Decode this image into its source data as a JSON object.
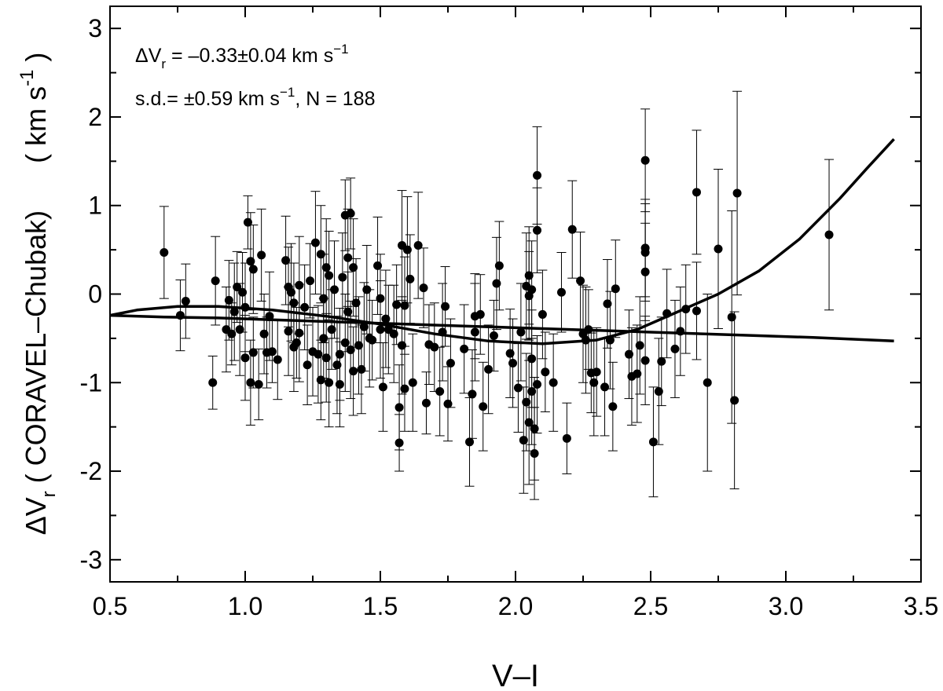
{
  "chart_data": {
    "type": "scatter",
    "title": "",
    "xlabel": "V–I",
    "ylabel_main": "ΔV",
    "ylabel_sub": "r",
    "ylabel_paren": "( CORAVEL–Chubak)",
    "ylabel_units": "( km s",
    "ylabel_units_sup": "-1",
    "ylabel_units_close": ")",
    "xlim": [
      0.5,
      3.5
    ],
    "ylim": [
      -3.25,
      3.25
    ],
    "xticks": [
      0.5,
      1.0,
      1.5,
      2.0,
      2.5,
      3.0,
      3.5
    ],
    "xtick_labels": [
      "0.5",
      "1.0",
      "1.5",
      "2.0",
      "2.5",
      "3.0",
      "3.5"
    ],
    "yticks": [
      -3,
      -2,
      -1,
      0,
      1,
      2,
      3
    ],
    "ytick_labels": [
      "-3",
      "-2",
      "-1",
      "0",
      "1",
      "2",
      "3"
    ],
    "grid": false,
    "annotations": {
      "line1_a": "ΔV",
      "line1_sub": "r",
      "line1_b": " = –0.33±0.04 km s",
      "line1_sup": "−1",
      "line2_a": "s.d.= ±0.59 km s",
      "line2_sup": "−1",
      "line2_b": ",  N = 188"
    },
    "points": [
      {
        "x": 0.7,
        "y": 0.47,
        "e": 0.52
      },
      {
        "x": 0.76,
        "y": -0.24,
        "e": 0.4
      },
      {
        "x": 0.78,
        "y": -0.08,
        "e": 0.42
      },
      {
        "x": 0.88,
        "y": -1.0,
        "e": 0.3
      },
      {
        "x": 0.89,
        "y": 0.15,
        "e": 0.5
      },
      {
        "x": 0.93,
        "y": -0.4,
        "e": 0.48
      },
      {
        "x": 0.94,
        "y": -0.07,
        "e": 0.45
      },
      {
        "x": 0.95,
        "y": -0.45,
        "e": 0.35
      },
      {
        "x": 0.96,
        "y": -0.2,
        "e": 0.55
      },
      {
        "x": 0.97,
        "y": 0.08,
        "e": 0.4
      },
      {
        "x": 0.98,
        "y": -0.4,
        "e": 0.52
      },
      {
        "x": 0.99,
        "y": 0.02,
        "e": 0.45
      },
      {
        "x": 1.0,
        "y": -0.15,
        "e": 0.5
      },
      {
        "x": 1.0,
        "y": -0.72,
        "e": 0.48
      },
      {
        "x": 1.01,
        "y": 0.81,
        "e": 0.3
      },
      {
        "x": 1.02,
        "y": -1.0,
        "e": 0.48
      },
      {
        "x": 1.02,
        "y": 0.37,
        "e": 0.55
      },
      {
        "x": 1.03,
        "y": 0.28,
        "e": 0.5
      },
      {
        "x": 1.03,
        "y": -0.66,
        "e": 0.4
      },
      {
        "x": 1.05,
        "y": -1.02,
        "e": 0.4
      },
      {
        "x": 1.06,
        "y": 0.44,
        "e": 0.52
      },
      {
        "x": 1.07,
        "y": -0.45,
        "e": 0.45
      },
      {
        "x": 1.08,
        "y": -0.66,
        "e": 0.4
      },
      {
        "x": 1.09,
        "y": -0.25,
        "e": 0.5
      },
      {
        "x": 1.1,
        "y": -0.65,
        "e": 0.35
      },
      {
        "x": 1.12,
        "y": -0.74,
        "e": 0.45
      },
      {
        "x": 1.15,
        "y": 0.38,
        "e": 0.5
      },
      {
        "x": 1.16,
        "y": 0.08,
        "e": 0.45
      },
      {
        "x": 1.16,
        "y": -0.42,
        "e": 0.5
      },
      {
        "x": 1.17,
        "y": 0.02,
        "e": 0.55
      },
      {
        "x": 1.18,
        "y": -0.1,
        "e": 0.45
      },
      {
        "x": 1.18,
        "y": -0.6,
        "e": 0.5
      },
      {
        "x": 1.19,
        "y": -0.55,
        "e": 0.4
      },
      {
        "x": 1.2,
        "y": 0.1,
        "e": 0.55
      },
      {
        "x": 1.2,
        "y": -0.44,
        "e": 0.55
      },
      {
        "x": 1.22,
        "y": -0.15,
        "e": 0.48
      },
      {
        "x": 1.23,
        "y": -0.8,
        "e": 0.45
      },
      {
        "x": 1.24,
        "y": 0.15,
        "e": 0.42
      },
      {
        "x": 1.25,
        "y": -0.65,
        "e": 0.5
      },
      {
        "x": 1.26,
        "y": 0.58,
        "e": 0.58
      },
      {
        "x": 1.27,
        "y": -0.68,
        "e": 0.55
      },
      {
        "x": 1.28,
        "y": 0.45,
        "e": 0.55
      },
      {
        "x": 1.28,
        "y": -0.97,
        "e": 0.45
      },
      {
        "x": 1.29,
        "y": -0.05,
        "e": 0.5
      },
      {
        "x": 1.29,
        "y": -0.5,
        "e": 0.45
      },
      {
        "x": 1.3,
        "y": 0.3,
        "e": 0.55
      },
      {
        "x": 1.3,
        "y": -0.72,
        "e": 0.5
      },
      {
        "x": 1.31,
        "y": 0.21,
        "e": 0.5
      },
      {
        "x": 1.31,
        "y": -1.0,
        "e": 0.5
      },
      {
        "x": 1.32,
        "y": -0.4,
        "e": 0.45
      },
      {
        "x": 1.33,
        "y": 0.05,
        "e": 0.55
      },
      {
        "x": 1.34,
        "y": -0.8,
        "e": 0.55
      },
      {
        "x": 1.35,
        "y": -1.02,
        "e": 0.48
      },
      {
        "x": 1.35,
        "y": -0.68,
        "e": 0.52
      },
      {
        "x": 1.36,
        "y": 0.19,
        "e": 0.5
      },
      {
        "x": 1.37,
        "y": 0.89,
        "e": 0.4
      },
      {
        "x": 1.37,
        "y": -0.55,
        "e": 0.55
      },
      {
        "x": 1.38,
        "y": 0.41,
        "e": 0.55
      },
      {
        "x": 1.38,
        "y": -0.2,
        "e": 0.45
      },
      {
        "x": 1.39,
        "y": 0.91,
        "e": 0.4
      },
      {
        "x": 1.39,
        "y": -0.63,
        "e": 0.55
      },
      {
        "x": 1.4,
        "y": 0.3,
        "e": 0.55
      },
      {
        "x": 1.4,
        "y": -0.87,
        "e": 0.5
      },
      {
        "x": 1.41,
        "y": -0.1,
        "e": 0.5
      },
      {
        "x": 1.42,
        "y": -0.58,
        "e": 0.55
      },
      {
        "x": 1.43,
        "y": -0.85,
        "e": 0.5
      },
      {
        "x": 1.44,
        "y": -0.37,
        "e": 0.5
      },
      {
        "x": 1.45,
        "y": 0.05,
        "e": 0.5
      },
      {
        "x": 1.46,
        "y": -0.5,
        "e": 0.55
      },
      {
        "x": 1.47,
        "y": -0.52,
        "e": 0.45
      },
      {
        "x": 1.49,
        "y": 0.32,
        "e": 0.55
      },
      {
        "x": 1.5,
        "y": -0.4,
        "e": 0.55
      },
      {
        "x": 1.5,
        "y": -0.05,
        "e": 0.5
      },
      {
        "x": 1.51,
        "y": -1.05,
        "e": 0.5
      },
      {
        "x": 1.52,
        "y": -0.28,
        "e": 0.55
      },
      {
        "x": 1.53,
        "y": -0.4,
        "e": 0.5
      },
      {
        "x": 1.55,
        "y": -0.45,
        "e": 0.55
      },
      {
        "x": 1.56,
        "y": -0.12,
        "e": 0.45
      },
      {
        "x": 1.57,
        "y": -1.28,
        "e": 0.48
      },
      {
        "x": 1.57,
        "y": -1.68,
        "e": 0.32
      },
      {
        "x": 1.58,
        "y": 0.55,
        "e": 0.62
      },
      {
        "x": 1.58,
        "y": -0.58,
        "e": 0.55
      },
      {
        "x": 1.59,
        "y": -1.07,
        "e": 0.48
      },
      {
        "x": 1.59,
        "y": -0.13,
        "e": 0.55
      },
      {
        "x": 1.6,
        "y": 0.5,
        "e": 0.6
      },
      {
        "x": 1.61,
        "y": 0.17,
        "e": 0.5
      },
      {
        "x": 1.62,
        "y": -1.0,
        "e": 0.55
      },
      {
        "x": 1.64,
        "y": 0.55,
        "e": 0.6
      },
      {
        "x": 1.66,
        "y": 0.07,
        "e": 0.45
      },
      {
        "x": 1.67,
        "y": -1.23,
        "e": 0.35
      },
      {
        "x": 1.68,
        "y": -0.57,
        "e": 0.45
      },
      {
        "x": 1.7,
        "y": -0.6,
        "e": 0.5
      },
      {
        "x": 1.72,
        "y": -1.1,
        "e": 0.5
      },
      {
        "x": 1.73,
        "y": -0.43,
        "e": 0.55
      },
      {
        "x": 1.74,
        "y": -0.14,
        "e": 0.45
      },
      {
        "x": 1.75,
        "y": -1.24,
        "e": 0.42
      },
      {
        "x": 1.76,
        "y": -0.78,
        "e": 0.5
      },
      {
        "x": 1.81,
        "y": -0.62,
        "e": 0.5
      },
      {
        "x": 1.83,
        "y": -1.67,
        "e": 0.5
      },
      {
        "x": 1.84,
        "y": -1.13,
        "e": 0.5
      },
      {
        "x": 1.85,
        "y": -0.43,
        "e": 0.55
      },
      {
        "x": 1.85,
        "y": -0.25,
        "e": 0.48
      },
      {
        "x": 1.87,
        "y": -0.23,
        "e": 0.45
      },
      {
        "x": 1.88,
        "y": -1.27,
        "e": 0.5
      },
      {
        "x": 1.9,
        "y": -0.85,
        "e": 0.5
      },
      {
        "x": 1.92,
        "y": -0.47,
        "e": 0.4
      },
      {
        "x": 1.93,
        "y": 0.12,
        "e": 0.52
      },
      {
        "x": 1.94,
        "y": 0.32,
        "e": 0.5
      },
      {
        "x": 1.98,
        "y": -0.67,
        "e": 0.5
      },
      {
        "x": 1.99,
        "y": -0.78,
        "e": 0.5
      },
      {
        "x": 2.01,
        "y": -1.06,
        "e": 0.5
      },
      {
        "x": 2.02,
        "y": -0.43,
        "e": 0.55
      },
      {
        "x": 2.03,
        "y": -1.65,
        "e": 0.6
      },
      {
        "x": 2.04,
        "y": -1.22,
        "e": 0.55
      },
      {
        "x": 2.04,
        "y": 0.09,
        "e": 0.6
      },
      {
        "x": 2.05,
        "y": -1.45,
        "e": 0.7
      },
      {
        "x": 2.05,
        "y": 0.21,
        "e": 0.55
      },
      {
        "x": 2.05,
        "y": -0.02,
        "e": 0.5
      },
      {
        "x": 2.06,
        "y": -1.1,
        "e": 0.6
      },
      {
        "x": 2.06,
        "y": -0.73,
        "e": 0.55
      },
      {
        "x": 2.06,
        "y": 0.05,
        "e": 0.55
      },
      {
        "x": 2.07,
        "y": -1.52,
        "e": 0.58
      },
      {
        "x": 2.07,
        "y": -1.8,
        "e": 0.52
      },
      {
        "x": 2.08,
        "y": 1.34,
        "e": 0.55
      },
      {
        "x": 2.08,
        "y": 0.72,
        "e": 0.48
      },
      {
        "x": 2.08,
        "y": -1.02,
        "e": 0.55
      },
      {
        "x": 2.1,
        "y": -0.23,
        "e": 0.5
      },
      {
        "x": 2.11,
        "y": -0.88,
        "e": 0.45
      },
      {
        "x": 2.14,
        "y": -1.0,
        "e": 0.55
      },
      {
        "x": 2.17,
        "y": 0.02,
        "e": 0.45
      },
      {
        "x": 2.19,
        "y": -1.63,
        "e": 0.4
      },
      {
        "x": 2.21,
        "y": 0.73,
        "e": 0.55
      },
      {
        "x": 2.24,
        "y": 0.15,
        "e": 0.55
      },
      {
        "x": 2.25,
        "y": -0.45,
        "e": 0.55
      },
      {
        "x": 2.26,
        "y": -0.52,
        "e": 0.6
      },
      {
        "x": 2.27,
        "y": -0.4,
        "e": 0.45
      },
      {
        "x": 2.28,
        "y": -0.89,
        "e": 0.45
      },
      {
        "x": 2.29,
        "y": -1.0,
        "e": 0.6
      },
      {
        "x": 2.3,
        "y": -0.88,
        "e": 0.5
      },
      {
        "x": 2.33,
        "y": -1.05,
        "e": 0.55
      },
      {
        "x": 2.34,
        "y": -0.11,
        "e": 0.5
      },
      {
        "x": 2.35,
        "y": -0.52,
        "e": 0.55
      },
      {
        "x": 2.36,
        "y": -1.27,
        "e": 0.5
      },
      {
        "x": 2.37,
        "y": 0.06,
        "e": 0.55
      },
      {
        "x": 2.42,
        "y": -0.68,
        "e": 0.5
      },
      {
        "x": 2.43,
        "y": -0.93,
        "e": 0.55
      },
      {
        "x": 2.45,
        "y": -0.9,
        "e": 0.55
      },
      {
        "x": 2.46,
        "y": -0.58,
        "e": 0.55
      },
      {
        "x": 2.48,
        "y": -0.75,
        "e": 0.5
      },
      {
        "x": 2.48,
        "y": 1.51,
        "e": 0.58
      },
      {
        "x": 2.48,
        "y": 0.52,
        "e": 0.55
      },
      {
        "x": 2.48,
        "y": 0.47,
        "e": 0.55
      },
      {
        "x": 2.48,
        "y": 0.25,
        "e": 0.55
      },
      {
        "x": 2.51,
        "y": -1.67,
        "e": 0.62
      },
      {
        "x": 2.53,
        "y": -1.1,
        "e": 0.6
      },
      {
        "x": 2.54,
        "y": -0.76,
        "e": 0.5
      },
      {
        "x": 2.56,
        "y": -0.22,
        "e": 0.5
      },
      {
        "x": 2.59,
        "y": -0.62,
        "e": 0.55
      },
      {
        "x": 2.61,
        "y": -0.42,
        "e": 0.5
      },
      {
        "x": 2.63,
        "y": -0.17,
        "e": 0.5
      },
      {
        "x": 2.67,
        "y": 1.15,
        "e": 0.7
      },
      {
        "x": 2.67,
        "y": -0.19,
        "e": 0.55
      },
      {
        "x": 2.71,
        "y": -1.0,
        "e": 1.0
      },
      {
        "x": 2.75,
        "y": 0.51,
        "e": 0.9
      },
      {
        "x": 2.8,
        "y": -0.26,
        "e": 1.2
      },
      {
        "x": 2.81,
        "y": -1.2,
        "e": 1.0
      },
      {
        "x": 2.82,
        "y": 1.14,
        "e": 1.15
      },
      {
        "x": 3.16,
        "y": 0.67,
        "e": 0.85
      }
    ],
    "curve_linear": [
      [
        0.5,
        -0.24
      ],
      [
        0.7,
        -0.26
      ],
      [
        0.9,
        -0.27
      ],
      [
        1.1,
        -0.29
      ],
      [
        1.3,
        -0.31
      ],
      [
        1.5,
        -0.33
      ],
      [
        1.7,
        -0.35
      ],
      [
        1.9,
        -0.37
      ],
      [
        2.1,
        -0.39
      ],
      [
        2.3,
        -0.41
      ],
      [
        2.5,
        -0.43
      ],
      [
        2.7,
        -0.45
      ],
      [
        2.9,
        -0.47
      ],
      [
        3.1,
        -0.49
      ],
      [
        3.4,
        -0.53
      ]
    ],
    "curve_poly": [
      [
        0.5,
        -0.24
      ],
      [
        0.6,
        -0.18
      ],
      [
        0.75,
        -0.14
      ],
      [
        0.9,
        -0.14
      ],
      [
        1.1,
        -0.18
      ],
      [
        1.3,
        -0.25
      ],
      [
        1.5,
        -0.34
      ],
      [
        1.7,
        -0.45
      ],
      [
        1.9,
        -0.53
      ],
      [
        2.1,
        -0.56
      ],
      [
        2.3,
        -0.52
      ],
      [
        2.45,
        -0.4
      ],
      [
        2.6,
        -0.2
      ],
      [
        2.75,
        0.0
      ],
      [
        2.9,
        0.26
      ],
      [
        3.05,
        0.62
      ],
      [
        3.2,
        1.08
      ],
      [
        3.3,
        1.42
      ],
      [
        3.4,
        1.75
      ]
    ]
  }
}
